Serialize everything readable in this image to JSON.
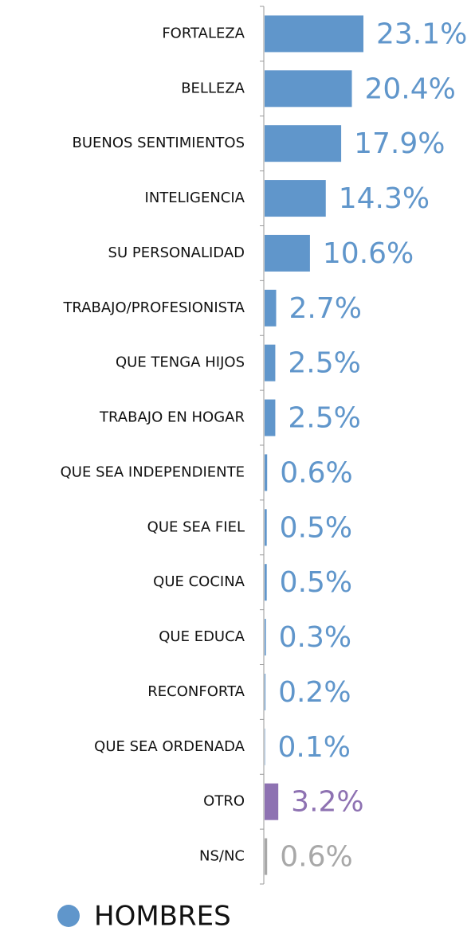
{
  "chart_data": {
    "type": "hbar",
    "categories": [
      "FORTALEZA",
      "BELLEZA",
      "BUENOS SENTIMIENTOS",
      "INTELIGENCIA",
      "SU PERSONALIDAD",
      "TRABAJO/PROFESIONISTA",
      "QUE TENGA HIJOS",
      "TRABAJO EN HOGAR",
      "QUE SEA INDEPENDIENTE",
      "QUE SEA FIEL",
      "QUE COCINA",
      "QUE EDUCA",
      "RECONFORTA",
      "QUE SEA ORDENADA",
      "OTRO",
      "NS/NC"
    ],
    "series": [
      {
        "name": "HOMBRES",
        "color": "#6096cb",
        "values": [
          23.1,
          20.4,
          17.9,
          14.3,
          10.6,
          2.7,
          2.5,
          2.5,
          0.6,
          0.5,
          0.5,
          0.3,
          0.2,
          0.1,
          3.2,
          0.6
        ],
        "value_labels": [
          "23.1%",
          "20.4%",
          "17.9%",
          "14.3%",
          "10.6%",
          "2.7%",
          "2.5%",
          "2.5%",
          "0.6%",
          "0.5%",
          "0.5%",
          "0.3%",
          "0.2%",
          "0.1%",
          "3.2%",
          "0.6%"
        ],
        "bar_colors": [
          "#6096cb",
          "#6096cb",
          "#6096cb",
          "#6096cb",
          "#6096cb",
          "#6096cb",
          "#6096cb",
          "#6096cb",
          "#6096cb",
          "#6096cb",
          "#6096cb",
          "#6096cb",
          "#6096cb",
          "#6096cb",
          "#8e72b2",
          "#a8a8a8"
        ]
      }
    ],
    "legend": "bottom-left"
  }
}
